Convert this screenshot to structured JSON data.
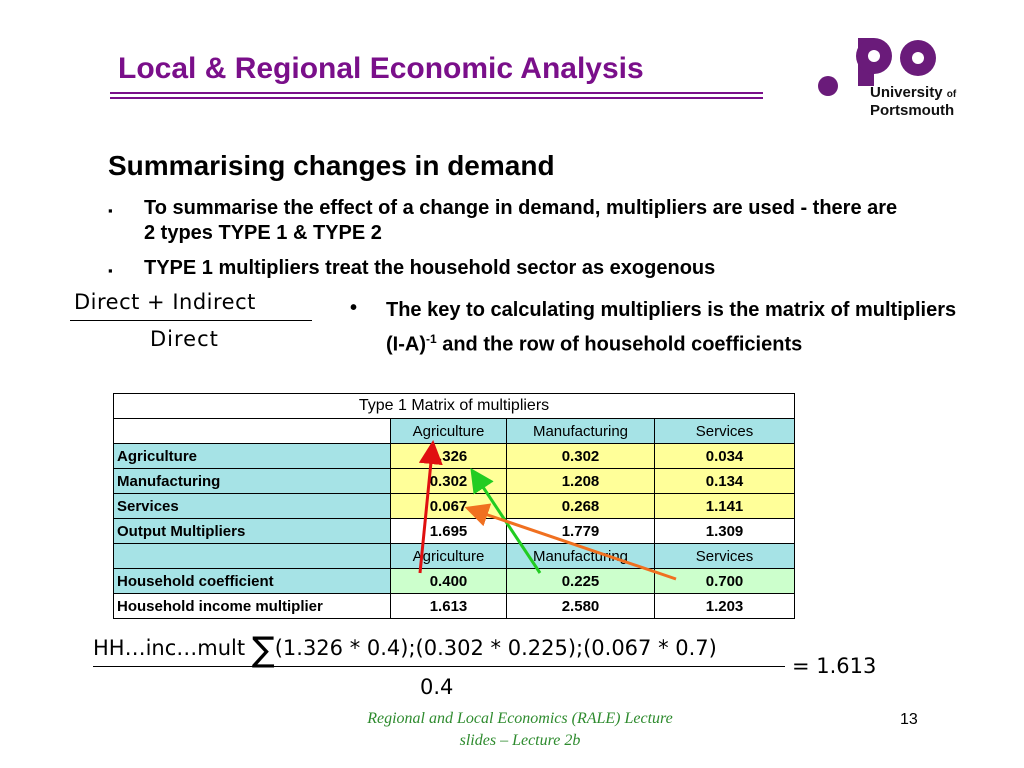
{
  "header": {
    "title": "Local & Regional Economic Analysis",
    "logo_line1": "University",
    "logo_of": "of",
    "logo_line2": "Portsmouth"
  },
  "slide": {
    "heading": "Summarising changes in demand",
    "bullet_marks": [
      "▪",
      "▪",
      "•"
    ],
    "bullets": [
      "To summarise the effect of a change in demand, multipliers are used - there are 2 types TYPE 1 & TYPE 2",
      "TYPE 1 multipliers treat the household sector as exogenous"
    ],
    "bullet3": {
      "part1": "The key to calculating multipliers is the matrix of multipliers   (I-A)",
      "sup": "-1",
      "part2": "  and the row of household coefficients"
    },
    "formula1": {
      "numerator": "Direct + Indirect",
      "denominator": "Direct"
    }
  },
  "table": {
    "caption": "Type 1 Matrix of multipliers",
    "columns": [
      "Agriculture",
      "Manufacturing",
      "Services"
    ],
    "rows": [
      {
        "label": "Agriculture",
        "values": [
          "1.326",
          "0.302",
          "0.034"
        ]
      },
      {
        "label": "Manufacturing",
        "values": [
          "0.302",
          "1.208",
          "0.134"
        ]
      },
      {
        "label": "Services",
        "values": [
          "0.067",
          "0.268",
          "1.141"
        ]
      },
      {
        "label": "Output Multipliers",
        "values": [
          "1.695",
          "1.779",
          "1.309"
        ]
      }
    ],
    "columns2": [
      "Agriculture",
      "Manufacturing",
      "Services"
    ],
    "household_coefficient": {
      "label": "Household coefficient",
      "values": [
        "0.400",
        "0.225",
        "0.700"
      ]
    },
    "household_income_multiplier": {
      "label": "Household income multiplier",
      "values": [
        "1.613",
        "2.580",
        "1.203"
      ]
    }
  },
  "equation": {
    "lhs": "HH…inc…mult",
    "sigma": "∑",
    "terms": "(1.326 * 0.4);(0.302 * 0.225);(0.067 * 0.7)",
    "denominator": "0.4",
    "result": "= 1.613"
  },
  "footer": {
    "line1": "Regional and Local Economics (RALE) Lecture",
    "line2": "slides – Lecture 2b",
    "page_number": "13"
  },
  "colors": {
    "brand_purple": "#7a0f8a",
    "label_cyan": "#a6e3e6",
    "matrix_yellow": "#ffff99",
    "household_green": "#ccffcc",
    "footer_green": "#2e8b2e",
    "arrow_red": "#e01010",
    "arrow_green": "#22cc22",
    "arrow_orange": "#f07020"
  }
}
